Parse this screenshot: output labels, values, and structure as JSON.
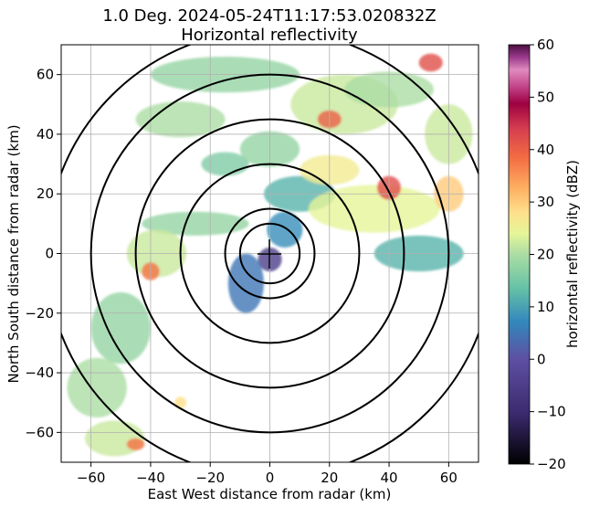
{
  "chart_data": {
    "type": "heatmap",
    "title_line1": "1.0 Deg. 2024-05-24T11:17:53.020832Z",
    "title_line2": "Horizontal reflectivity",
    "xlabel": "East West distance from radar (km)",
    "ylabel": "North South distance from radar (km)",
    "xlim": [
      -70,
      70
    ],
    "ylim": [
      -70,
      70
    ],
    "xticks": [
      -60,
      -40,
      -20,
      0,
      20,
      40,
      60
    ],
    "yticks": [
      60,
      40,
      20,
      0,
      -20,
      -40,
      -60
    ],
    "grid": true,
    "range_rings_km": [
      10,
      15,
      30,
      45,
      60,
      75
    ],
    "colorbar": {
      "label": "horizontal reflectivity (dBZ)",
      "min": -20,
      "max": 60,
      "ticks": [
        60,
        50,
        40,
        30,
        20,
        10,
        0,
        -10,
        -20
      ],
      "colormap": "spectral"
    },
    "echo_regions": [
      {
        "x": 0,
        "y": -2,
        "rx": 4,
        "ry": 4,
        "dbz": -5
      },
      {
        "x": -8,
        "y": -10,
        "rx": 6,
        "ry": 10,
        "dbz": 5
      },
      {
        "x": 5,
        "y": 8,
        "rx": 6,
        "ry": 6,
        "dbz": 8
      },
      {
        "x": 10,
        "y": 20,
        "rx": 12,
        "ry": 6,
        "dbz": 12
      },
      {
        "x": -25,
        "y": 10,
        "rx": 18,
        "ry": 4,
        "dbz": 18
      },
      {
        "x": -38,
        "y": 0,
        "rx": 10,
        "ry": 8,
        "dbz": 22
      },
      {
        "x": -40,
        "y": -6,
        "rx": 3,
        "ry": 3,
        "dbz": 38
      },
      {
        "x": 35,
        "y": 15,
        "rx": 22,
        "ry": 8,
        "dbz": 24
      },
      {
        "x": 40,
        "y": 22,
        "rx": 4,
        "ry": 4,
        "dbz": 42
      },
      {
        "x": 20,
        "y": 28,
        "rx": 10,
        "ry": 5,
        "dbz": 26
      },
      {
        "x": 25,
        "y": 50,
        "rx": 18,
        "ry": 10,
        "dbz": 22
      },
      {
        "x": 20,
        "y": 45,
        "rx": 4,
        "ry": 3,
        "dbz": 40
      },
      {
        "x": 54,
        "y": 64,
        "rx": 4,
        "ry": 3,
        "dbz": 42
      },
      {
        "x": 40,
        "y": 55,
        "rx": 15,
        "ry": 6,
        "dbz": 20
      },
      {
        "x": -15,
        "y": 60,
        "rx": 25,
        "ry": 6,
        "dbz": 18
      },
      {
        "x": -30,
        "y": 45,
        "rx": 15,
        "ry": 6,
        "dbz": 20
      },
      {
        "x": 60,
        "y": 40,
        "rx": 8,
        "ry": 10,
        "dbz": 22
      },
      {
        "x": 60,
        "y": 20,
        "rx": 5,
        "ry": 6,
        "dbz": 30
      },
      {
        "x": -50,
        "y": -25,
        "rx": 10,
        "ry": 12,
        "dbz": 18
      },
      {
        "x": -58,
        "y": -45,
        "rx": 10,
        "ry": 10,
        "dbz": 20
      },
      {
        "x": -52,
        "y": -62,
        "rx": 10,
        "ry": 6,
        "dbz": 22
      },
      {
        "x": -45,
        "y": -64,
        "rx": 3,
        "ry": 2,
        "dbz": 38
      },
      {
        "x": -30,
        "y": -50,
        "rx": 2,
        "ry": 2,
        "dbz": 28
      },
      {
        "x": 50,
        "y": 0,
        "rx": 15,
        "ry": 6,
        "dbz": 12
      },
      {
        "x": -15,
        "y": 30,
        "rx": 8,
        "ry": 4,
        "dbz": 16
      },
      {
        "x": 0,
        "y": 35,
        "rx": 10,
        "ry": 6,
        "dbz": 18
      }
    ]
  }
}
